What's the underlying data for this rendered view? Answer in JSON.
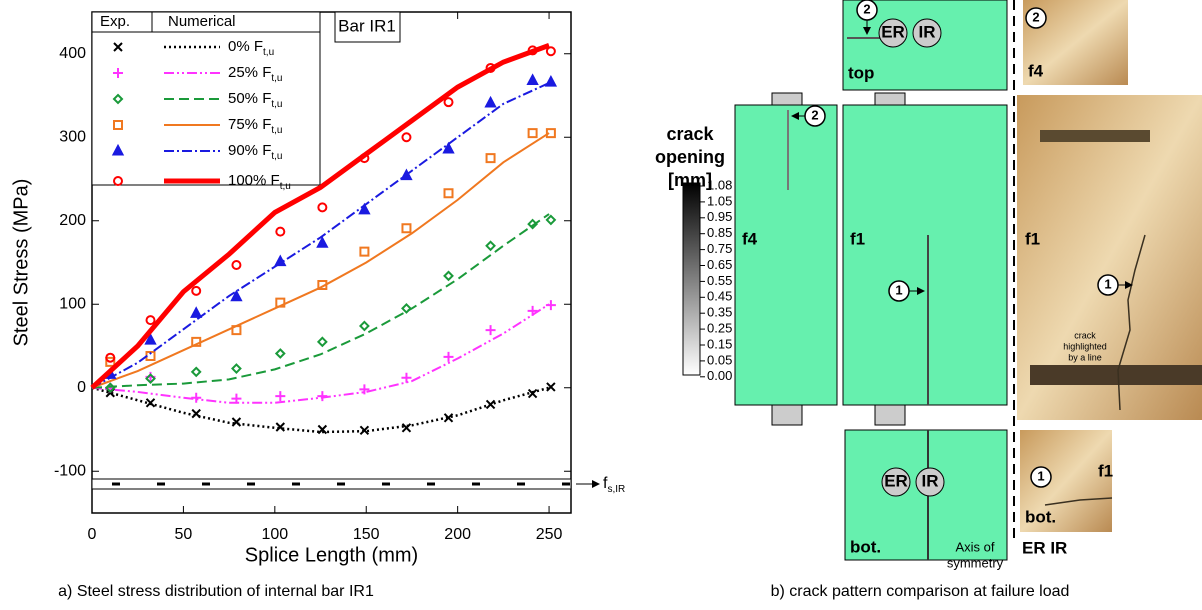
{
  "chart_data": {
    "type": "line",
    "xlabel": "Splice Length (mm)",
    "ylabel": "Steel Stress (MPa)",
    "annotation": "Bar IR1",
    "legend_headers": [
      "Exp.",
      "Numerical"
    ],
    "band_label": "f",
    "band_label_subscript": "s,IR",
    "xlim": [
      0,
      262
    ],
    "ylim": [
      -150,
      450
    ],
    "xticks": [
      0,
      50,
      100,
      150,
      200,
      250
    ],
    "yticks": [
      -100,
      0,
      100,
      200,
      300,
      400
    ],
    "grid": false,
    "exp_x": [
      10,
      32,
      57,
      79,
      103,
      126,
      149,
      172,
      195,
      218,
      241,
      251
    ],
    "x": [
      0,
      25,
      50,
      75,
      100,
      125,
      150,
      175,
      200,
      225,
      250
    ],
    "series": [
      {
        "name": "0% F",
        "subscript": "t,u",
        "color": "#000000",
        "marker": "x",
        "dash": "2 3",
        "width": 2.5,
        "exp_values": [
          -6,
          -18,
          -31,
          -41,
          -47,
          -50,
          -51,
          -48,
          -36,
          -20,
          -7,
          1
        ],
        "values": [
          0,
          -15,
          -30,
          -42,
          -48,
          -53,
          -52,
          -45,
          -33,
          -15,
          0
        ]
      },
      {
        "name": "25% F",
        "subscript": "t,u",
        "color": "#ff33ff",
        "marker": "plus",
        "dash": "10 3 2 3 2 3",
        "width": 2,
        "exp_values": [
          0,
          13,
          -12,
          -13,
          -10,
          -10,
          -2,
          12,
          37,
          69,
          92,
          99
        ],
        "values": [
          0,
          -5,
          -12,
          -18,
          -18,
          -12,
          -5,
          8,
          35,
          65,
          100
        ]
      },
      {
        "name": "50% F",
        "subscript": "t,u",
        "color": "#1a9a3a",
        "marker": "diamond",
        "dash": "10 5",
        "width": 2,
        "exp_values": [
          0,
          11,
          19,
          23,
          41,
          55,
          74,
          95,
          134,
          170,
          196,
          201
        ],
        "values": [
          0,
          3,
          5,
          10,
          22,
          40,
          65,
          95,
          130,
          170,
          208
        ]
      },
      {
        "name": "75% F",
        "subscript": "t,u",
        "color": "#f07820",
        "marker": "square",
        "dash": "none",
        "width": 2,
        "exp_values": [
          31,
          38,
          55,
          69,
          102,
          123,
          163,
          191,
          233,
          275,
          305,
          305
        ],
        "values": [
          0,
          20,
          45,
          70,
          95,
          120,
          150,
          185,
          225,
          270,
          305
        ]
      },
      {
        "name": "90% F",
        "subscript": "t,u",
        "color": "#1a1ae0",
        "marker": "triangle",
        "dash": "10 3 2 3",
        "width": 2,
        "exp_values": [
          16,
          57,
          89,
          109,
          151,
          173,
          213,
          254,
          286,
          341,
          368,
          366
        ],
        "values": [
          0,
          30,
          70,
          110,
          145,
          180,
          220,
          260,
          300,
          340,
          365
        ]
      },
      {
        "name": "100% F",
        "subscript": "t,u",
        "color": "#ff0000",
        "marker": "circle",
        "dash": "none",
        "width": 5,
        "exp_values": [
          36,
          81,
          116,
          147,
          187,
          216,
          275,
          300,
          342,
          383,
          404,
          403
        ],
        "values": [
          0,
          50,
          115,
          160,
          210,
          240,
          280,
          320,
          360,
          390,
          410
        ]
      }
    ]
  },
  "caption_a": "a) Steel stress distribution of internal bar IR1",
  "panel_b": {
    "scale_title": [
      "crack",
      "opening",
      "[mm]"
    ],
    "scale_labels": [
      "1.08",
      "1.05",
      "0.95",
      "0.85",
      "0.75",
      "0.65",
      "0.55",
      "0.45",
      "0.35",
      "0.25",
      "0.15",
      "0.05",
      "0.00"
    ],
    "face_labels": [
      "top",
      "f4",
      "f4",
      "f1",
      "f1",
      "bot.",
      "bot.",
      "f1"
    ],
    "bar_labels": [
      "ER",
      "IR",
      "ER",
      "IR"
    ],
    "crack_markers": [
      "2",
      "2",
      "2",
      "1",
      "1",
      "1"
    ],
    "photo_note": [
      "crack",
      "highlighted",
      "by a line"
    ],
    "axis_label": [
      "Axis of",
      "symmetry"
    ],
    "bar_names": "ER IR",
    "caption": "b) crack pattern comparison at failure load"
  }
}
